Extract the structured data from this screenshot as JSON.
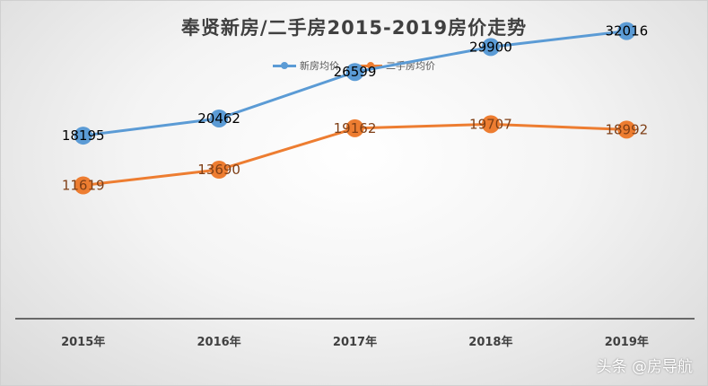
{
  "chart_data": {
    "type": "line",
    "title": "奉贤新房/二手房2015-2019房价走势",
    "categories": [
      "2015年",
      "2016年",
      "2017年",
      "2018年",
      "2019年"
    ],
    "series": [
      {
        "name": "新房均价",
        "values": [
          18195,
          20462,
          26599,
          29900,
          32016
        ],
        "color": "#5b9bd5",
        "label_color": "#000000"
      },
      {
        "name": "二手房均价",
        "values": [
          11619,
          13690,
          19162,
          19707,
          18992
        ],
        "color": "#ed7d31",
        "label_color": "#7f3f16"
      }
    ],
    "xlabel": "",
    "ylabel": "",
    "ylim": [
      -6000,
      36000
    ],
    "grid": false,
    "legend": "top-center"
  },
  "watermark": "头条 @房导航"
}
